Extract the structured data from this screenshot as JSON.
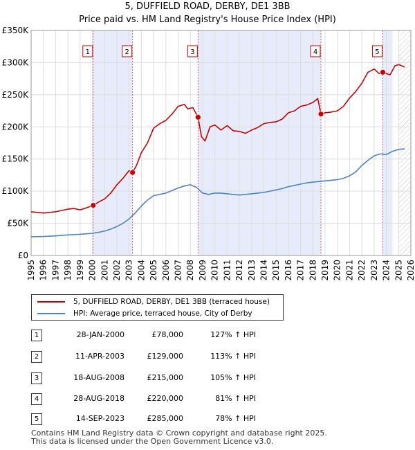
{
  "chart_data": {
    "type": "line",
    "title": "5, DUFFIELD ROAD, DERBY, DE1 3BB",
    "subtitle": "Price paid vs. HM Land Registry's House Price Index (HPI)",
    "xlim": [
      1995,
      2026
    ],
    "ylim": [
      0,
      350000
    ],
    "x_ticks": [
      "1995",
      "1996",
      "1997",
      "1998",
      "1999",
      "2000",
      "2001",
      "2002",
      "2003",
      "2004",
      "2005",
      "2006",
      "2007",
      "2008",
      "2009",
      "2010",
      "2011",
      "2012",
      "2013",
      "2014",
      "2015",
      "2016",
      "2017",
      "2018",
      "2019",
      "2020",
      "2021",
      "2022",
      "2023",
      "2024",
      "2025",
      "2026"
    ],
    "y_ticks": [
      {
        "value": 0,
        "label": "£0"
      },
      {
        "value": 50000,
        "label": "£50K"
      },
      {
        "value": 100000,
        "label": "£100K"
      },
      {
        "value": 150000,
        "label": "£150K"
      },
      {
        "value": 200000,
        "label": "£200K"
      },
      {
        "value": 250000,
        "label": "£250K"
      },
      {
        "value": 300000,
        "label": "£300K"
      },
      {
        "value": 350000,
        "label": "£350K"
      }
    ],
    "shaded_spans": [
      [
        2000.07,
        2003.28
      ],
      [
        2008.63,
        2018.66
      ],
      [
        2023.71,
        2024.5
      ]
    ],
    "forecast_from": 2025.0,
    "series": [
      {
        "name": "5, DUFFIELD ROAD, DERBY, DE1 3BB (terraced house)",
        "color": "#cc0000",
        "x": [
          1995.0,
          1996.0,
          1997.0,
          1998.0,
          1998.5,
          1999.0,
          1999.5,
          2000.07,
          2000.5,
          2001.0,
          2001.5,
          2002.0,
          2002.5,
          2003.0,
          2003.28,
          2003.6,
          2004.0,
          2004.5,
          2005.0,
          2005.5,
          2006.0,
          2006.5,
          2007.0,
          2007.5,
          2007.8,
          2008.2,
          2008.63,
          2008.9,
          2009.2,
          2009.6,
          2010.0,
          2010.5,
          2011.0,
          2011.5,
          2012.0,
          2012.5,
          2013.0,
          2013.5,
          2014.0,
          2014.5,
          2015.0,
          2015.5,
          2016.0,
          2016.5,
          2017.0,
          2017.5,
          2018.0,
          2018.4,
          2018.66,
          2019.0,
          2019.5,
          2020.0,
          2020.5,
          2021.0,
          2021.5,
          2022.0,
          2022.5,
          2023.0,
          2023.4,
          2023.71,
          2024.0,
          2024.3,
          2024.7,
          2025.0,
          2025.5
        ],
        "values": [
          68000,
          66000,
          68000,
          72000,
          73000,
          71000,
          74000,
          78000,
          83000,
          88000,
          97000,
          110000,
          120000,
          132000,
          129000,
          140000,
          160000,
          175000,
          198000,
          205000,
          210000,
          220000,
          232000,
          235000,
          228000,
          230000,
          215000,
          185000,
          178000,
          200000,
          203000,
          195000,
          202000,
          194000,
          193000,
          190000,
          195000,
          199000,
          205000,
          207000,
          208000,
          212000,
          222000,
          225000,
          232000,
          234000,
          238000,
          244000,
          220000,
          222000,
          223000,
          225000,
          232000,
          245000,
          255000,
          268000,
          285000,
          290000,
          283000,
          285000,
          283000,
          281000,
          295000,
          297000,
          293000
        ]
      },
      {
        "name": "HPI: Average price, terraced house, City of Derby",
        "color": "#4d82c4",
        "x": [
          1995.0,
          1996.0,
          1997.0,
          1998.0,
          1999.0,
          2000.0,
          2000.5,
          2001.0,
          2001.5,
          2002.0,
          2002.5,
          2003.0,
          2003.5,
          2004.0,
          2004.5,
          2005.0,
          2005.5,
          2006.0,
          2006.5,
          2007.0,
          2007.5,
          2008.0,
          2008.5,
          2009.0,
          2009.5,
          2010.0,
          2010.5,
          2011.0,
          2011.5,
          2012.0,
          2012.5,
          2013.0,
          2013.5,
          2014.0,
          2014.5,
          2015.0,
          2015.5,
          2016.0,
          2016.5,
          2017.0,
          2017.5,
          2018.0,
          2018.5,
          2019.0,
          2019.5,
          2020.0,
          2020.5,
          2021.0,
          2021.5,
          2022.0,
          2022.5,
          2023.0,
          2023.5,
          2024.0,
          2024.5,
          2025.0,
          2025.5
        ],
        "values": [
          29000,
          29500,
          30500,
          32000,
          33000,
          34500,
          36000,
          38000,
          41000,
          45000,
          50000,
          57000,
          66000,
          77000,
          86000,
          93000,
          95000,
          97000,
          101000,
          105000,
          108000,
          110000,
          106000,
          97000,
          95000,
          97000,
          97000,
          96000,
          95000,
          94000,
          95000,
          96000,
          97000,
          98000,
          100000,
          102000,
          104000,
          107000,
          109000,
          111000,
          113000,
          114000,
          115000,
          116000,
          117000,
          118000,
          120000,
          124000,
          130000,
          140000,
          148000,
          155000,
          158000,
          157000,
          162000,
          165000,
          166000
        ]
      }
    ],
    "markers": [
      {
        "label": "1",
        "x": 2000.07,
        "value": 78000
      },
      {
        "label": "2",
        "x": 2003.28,
        "value": 129000
      },
      {
        "label": "3",
        "x": 2008.63,
        "value": 215000
      },
      {
        "label": "4",
        "x": 2018.66,
        "value": 220000
      },
      {
        "label": "5",
        "x": 2023.71,
        "value": 285000
      }
    ]
  },
  "legend": {
    "property": "5, DUFFIELD ROAD, DERBY, DE1 3BB (terraced house)",
    "hpi": "HPI: Average price, terraced house, City of Derby",
    "property_color": "#cc0000",
    "hpi_color": "#4d82c4"
  },
  "transactions": [
    {
      "num": "1",
      "date": "28-JAN-2000",
      "price": "£78,000",
      "hpi": "127% ↑ HPI"
    },
    {
      "num": "2",
      "date": "11-APR-2003",
      "price": "£129,000",
      "hpi": "113% ↑ HPI"
    },
    {
      "num": "3",
      "date": "18-AUG-2008",
      "price": "£215,000",
      "hpi": "105% ↑ HPI"
    },
    {
      "num": "4",
      "date": "28-AUG-2018",
      "price": "£220,000",
      "hpi": "81% ↑ HPI"
    },
    {
      "num": "5",
      "date": "14-SEP-2023",
      "price": "£285,000",
      "hpi": "78% ↑ HPI"
    }
  ],
  "footer": {
    "line1": "Contains HM Land Registry data © Crown copyright and database right 2025.",
    "line2": "This data is licensed under the Open Government Licence v3.0."
  }
}
